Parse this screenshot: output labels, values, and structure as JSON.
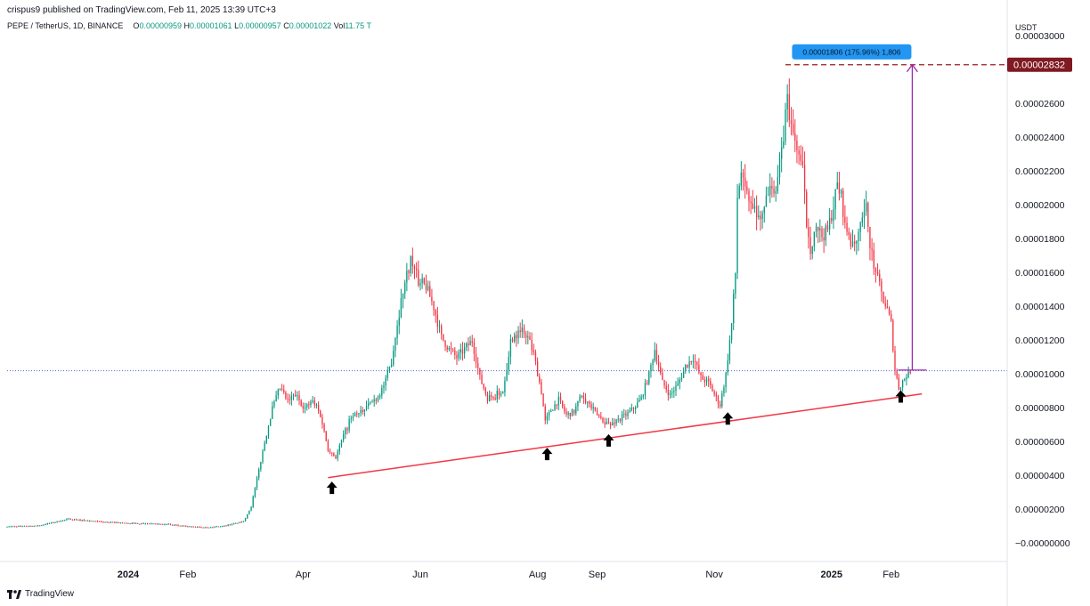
{
  "header": {
    "publisher": "crispus9 published on TradingView.com, Feb 11, 2025 13:39 UTC+3",
    "symbol": "PEPE / TetherUS, 1D, BINANCE",
    "ohlc": {
      "o_label": "O",
      "o": "0.00000959",
      "h_label": "H",
      "h": "0.00001061",
      "l_label": "L",
      "l": "0.00000957",
      "c_label": "C",
      "c": "0.00001022",
      "vol_label": "Vol",
      "vol": "11.75 T"
    }
  },
  "footer": {
    "brand": "TradingView"
  },
  "colors": {
    "up": "#089981",
    "down": "#f23645",
    "trendline": "#f23645",
    "measure": "#9c27b0",
    "measure_label_bg": "#2196f3",
    "target_line": "#9b1c1c",
    "target_label_bg": "#801922",
    "current_price_line": "#5b6bd6"
  },
  "chart_data": {
    "type": "candlestick",
    "currency": "USDT",
    "y_tick_labels": [
      "0.00003000",
      "0.00002600",
      "0.00002400",
      "0.00002200",
      "0.00002000",
      "0.00001800",
      "0.00001600",
      "0.00001400",
      "0.00001200",
      "0.00001000",
      "0.00000800",
      "0.00000600",
      "0.00000400",
      "0.00000200",
      "−0.00000000"
    ],
    "y_ticks": [
      3e-05,
      2.6e-05,
      2.4e-05,
      2.2e-05,
      2e-05,
      1.8e-05,
      1.6e-05,
      1.4e-05,
      1.2e-05,
      1e-05,
      8e-06,
      6e-06,
      4e-06,
      2e-06,
      0.0
    ],
    "ylim": [
      -8e-07,
      3.12e-05
    ],
    "x_tick_labels": [
      {
        "label": "2024",
        "date": "2024-01-01",
        "bold": true
      },
      {
        "label": "Feb",
        "date": "2024-02-01",
        "bold": false
      },
      {
        "label": "Apr",
        "date": "2024-04-01",
        "bold": false
      },
      {
        "label": "Jun",
        "date": "2024-06-01",
        "bold": false
      },
      {
        "label": "Aug",
        "date": "2024-08-01",
        "bold": false
      },
      {
        "label": "Sep",
        "date": "2024-09-01",
        "bold": false
      },
      {
        "label": "Nov",
        "date": "2024-11-01",
        "bold": false
      },
      {
        "label": "2025",
        "date": "2025-01-01",
        "bold": true
      },
      {
        "label": "Feb",
        "date": "2025-02-01",
        "bold": false
      }
    ],
    "xlim": [
      "2023-10-30",
      "2025-04-01"
    ],
    "close_path": [
      [
        "2023-10-30",
        1e-06
      ],
      [
        "2023-11-15",
        1.05e-06
      ],
      [
        "2023-12-01",
        1.45e-06
      ],
      [
        "2023-12-15",
        1.3e-06
      ],
      [
        "2024-01-01",
        1.2e-06
      ],
      [
        "2024-01-20",
        1.15e-06
      ],
      [
        "2024-02-01",
        1e-06
      ],
      [
        "2024-02-10",
        9.5e-07
      ],
      [
        "2024-02-20",
        1.05e-06
      ],
      [
        "2024-03-01",
        1.3e-06
      ],
      [
        "2024-03-05",
        2.2e-06
      ],
      [
        "2024-03-08",
        3.8e-06
      ],
      [
        "2024-03-12",
        6e-06
      ],
      [
        "2024-03-16",
        8e-06
      ],
      [
        "2024-03-20",
        9.2e-06
      ],
      [
        "2024-03-24",
        8.4e-06
      ],
      [
        "2024-03-28",
        8.8e-06
      ],
      [
        "2024-04-02",
        8e-06
      ],
      [
        "2024-04-06",
        8.5e-06
      ],
      [
        "2024-04-10",
        7.6e-06
      ],
      [
        "2024-04-14",
        5.6e-06
      ],
      [
        "2024-04-18",
        5.1e-06
      ],
      [
        "2024-04-22",
        6.4e-06
      ],
      [
        "2024-04-26",
        7.5e-06
      ],
      [
        "2024-04-30",
        7.6e-06
      ],
      [
        "2024-05-05",
        8.2e-06
      ],
      [
        "2024-05-10",
        8.7e-06
      ],
      [
        "2024-05-14",
        9.6e-06
      ],
      [
        "2024-05-17",
        1.08e-05
      ],
      [
        "2024-05-20",
        1.3e-05
      ],
      [
        "2024-05-23",
        1.5e-05
      ],
      [
        "2024-05-27",
        1.68e-05
      ],
      [
        "2024-05-31",
        1.55e-05
      ],
      [
        "2024-06-04",
        1.52e-05
      ],
      [
        "2024-06-08",
        1.4e-05
      ],
      [
        "2024-06-12",
        1.22e-05
      ],
      [
        "2024-06-16",
        1.15e-05
      ],
      [
        "2024-06-20",
        1.1e-05
      ],
      [
        "2024-06-24",
        1.15e-05
      ],
      [
        "2024-06-28",
        1.2e-05
      ],
      [
        "2024-07-02",
        9.8e-06
      ],
      [
        "2024-07-06",
        8.6e-06
      ],
      [
        "2024-07-10",
        8.8e-06
      ],
      [
        "2024-07-14",
        9e-06
      ],
      [
        "2024-07-18",
        1.2e-05
      ],
      [
        "2024-07-22",
        1.28e-05
      ],
      [
        "2024-07-26",
        1.25e-05
      ],
      [
        "2024-07-30",
        1.12e-05
      ],
      [
        "2024-08-03",
        9e-06
      ],
      [
        "2024-08-05",
        7.2e-06
      ],
      [
        "2024-08-08",
        7.9e-06
      ],
      [
        "2024-08-12",
        8.5e-06
      ],
      [
        "2024-08-16",
        7.6e-06
      ],
      [
        "2024-08-20",
        7.8e-06
      ],
      [
        "2024-08-24",
        8.8e-06
      ],
      [
        "2024-08-28",
        8.2e-06
      ],
      [
        "2024-09-01",
        7.6e-06
      ],
      [
        "2024-09-05",
        7.2e-06
      ],
      [
        "2024-09-08",
        7e-06
      ],
      [
        "2024-09-12",
        7.4e-06
      ],
      [
        "2024-09-16",
        7.6e-06
      ],
      [
        "2024-09-20",
        8e-06
      ],
      [
        "2024-09-24",
        8.6e-06
      ],
      [
        "2024-09-28",
        1e-05
      ],
      [
        "2024-10-01",
        1.15e-05
      ],
      [
        "2024-10-05",
        9.5e-06
      ],
      [
        "2024-10-09",
        8.8e-06
      ],
      [
        "2024-10-13",
        9.4e-06
      ],
      [
        "2024-10-17",
        1.05e-05
      ],
      [
        "2024-10-21",
        1.1e-05
      ],
      [
        "2024-10-25",
        9.8e-06
      ],
      [
        "2024-10-29",
        9.5e-06
      ],
      [
        "2024-11-02",
        8.6e-06
      ],
      [
        "2024-11-04",
        8.2e-06
      ],
      [
        "2024-11-07",
        1e-05
      ],
      [
        "2024-11-10",
        1.3e-05
      ],
      [
        "2024-11-12",
        1.6e-05
      ],
      [
        "2024-11-13",
        2.05e-05
      ],
      [
        "2024-11-15",
        2.2e-05
      ],
      [
        "2024-11-18",
        2.05e-05
      ],
      [
        "2024-11-22",
        1.95e-05
      ],
      [
        "2024-11-26",
        1.9e-05
      ],
      [
        "2024-11-30",
        2.15e-05
      ],
      [
        "2024-12-03",
        2.1e-05
      ],
      [
        "2024-12-06",
        2.3e-05
      ],
      [
        "2024-12-09",
        2.65e-05
      ],
      [
        "2024-12-11",
        2.45e-05
      ],
      [
        "2024-12-14",
        2.35e-05
      ],
      [
        "2024-12-17",
        2.2e-05
      ],
      [
        "2024-12-19",
        1.9e-05
      ],
      [
        "2024-12-21",
        1.75e-05
      ],
      [
        "2024-12-24",
        1.88e-05
      ],
      [
        "2024-12-27",
        1.82e-05
      ],
      [
        "2024-12-30",
        1.85e-05
      ],
      [
        "2025-01-02",
        2e-05
      ],
      [
        "2025-01-04",
        2.12e-05
      ],
      [
        "2025-01-06",
        2.05e-05
      ],
      [
        "2025-01-08",
        1.9e-05
      ],
      [
        "2025-01-10",
        1.82e-05
      ],
      [
        "2025-01-12",
        1.75e-05
      ],
      [
        "2025-01-14",
        1.78e-05
      ],
      [
        "2025-01-17",
        1.9e-05
      ],
      [
        "2025-01-19",
        1.98e-05
      ],
      [
        "2025-01-21",
        1.78e-05
      ],
      [
        "2025-01-23",
        1.64e-05
      ],
      [
        "2025-01-26",
        1.52e-05
      ],
      [
        "2025-01-28",
        1.44e-05
      ],
      [
        "2025-01-30",
        1.38e-05
      ],
      [
        "2025-02-01",
        1.3e-05
      ],
      [
        "2025-02-03",
        1.03e-05
      ],
      [
        "2025-02-05",
        9.2e-06
      ],
      [
        "2025-02-07",
        9.6e-06
      ],
      [
        "2025-02-09",
        9.9e-06
      ],
      [
        "2025-02-11",
        1.022e-05
      ]
    ],
    "annotations": {
      "support_trendline": {
        "from": [
          "2024-04-14",
          3.9e-06
        ],
        "to": [
          "2025-02-17",
          8.85e-06
        ]
      },
      "support_arrows": [
        {
          "date": "2024-04-16",
          "value": 3.3e-06
        },
        {
          "date": "2024-08-06",
          "value": 5.3e-06
        },
        {
          "date": "2024-09-07",
          "value": 6.1e-06
        },
        {
          "date": "2024-11-08",
          "value": 7.4e-06
        },
        {
          "date": "2025-02-06",
          "value": 8.7e-06
        }
      ],
      "current_price": 1.022e-05,
      "target_price": 2.832e-05,
      "target_label": "0.00002832",
      "target_line_from": "2024-12-08",
      "measure": {
        "date": "2025-02-12",
        "from": 1.026e-05,
        "to": 2.832e-05,
        "label": "0.00001806 (175.96%) 1,806"
      }
    }
  }
}
